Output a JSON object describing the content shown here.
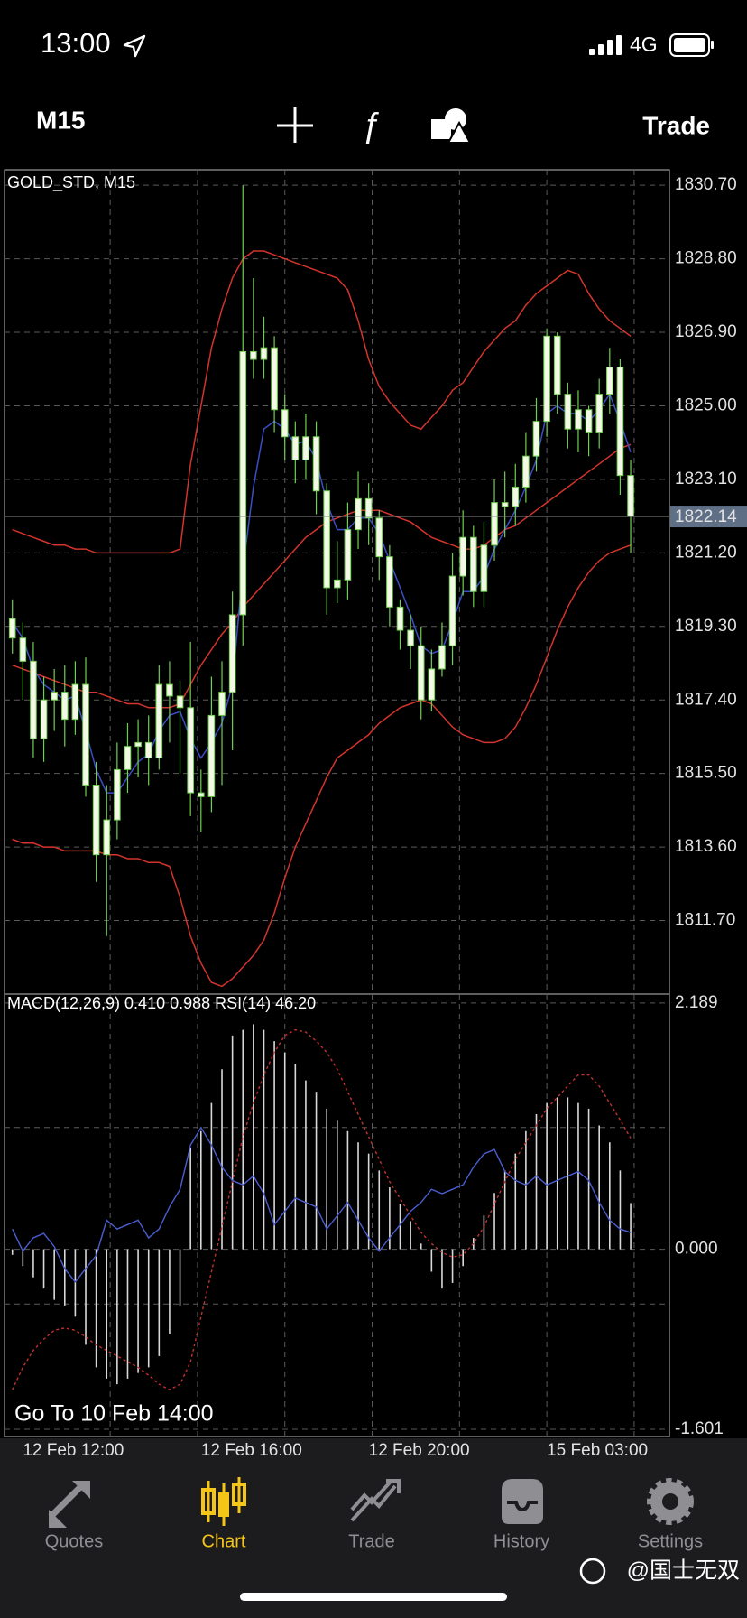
{
  "status_bar": {
    "time": "13:00",
    "network": "4G"
  },
  "toolbar": {
    "timeframe": "M15",
    "action": "Trade"
  },
  "chart_data": [
    {
      "type": "candlestick",
      "title": "GOLD_STD, M15",
      "categories": [
        null,
        "12 Feb 12:00",
        null,
        null,
        null,
        null,
        null,
        null,
        null,
        null,
        null,
        null,
        null,
        null,
        null,
        null,
        null,
        null,
        "12 Feb 16:00",
        null,
        null,
        null,
        null,
        null,
        null,
        null,
        null,
        null,
        null,
        null,
        null,
        null,
        null,
        null,
        "12 Feb 20:00",
        null,
        null,
        null,
        null,
        null,
        null,
        null,
        null,
        null,
        null,
        null,
        null,
        null,
        null,
        null,
        null,
        "15 Feb 03:00",
        null,
        null,
        null,
        null,
        null,
        null,
        null,
        null
      ],
      "open": [
        1819.5,
        1819.0,
        1818.4,
        1816.4,
        1817.4,
        1817.6,
        1816.9,
        1817.8,
        1815.2,
        1813.4,
        1814.3,
        1815.6,
        1816.2,
        1816.3,
        1815.9,
        1817.8,
        1817.5,
        1817.2,
        1815.0,
        1814.9,
        1817.0,
        1817.6,
        1819.6,
        1826.4,
        1826.2,
        1826.5,
        1824.9,
        1824.2,
        1823.6,
        1824.2,
        1822.8,
        1820.3,
        1820.5,
        1821.8,
        1822.6,
        1822.1,
        1821.1,
        1819.8,
        1819.2,
        1818.8,
        1817.4,
        1818.2,
        1818.8,
        1820.6,
        1821.6,
        1820.2,
        1821.4,
        1822.5,
        1822.4,
        1822.9,
        1823.7,
        1824.6,
        1826.8,
        1825.3,
        1824.4,
        1824.9,
        1824.3,
        1825.3,
        1826.0,
        1823.2
      ],
      "high": [
        1820.0,
        1819.4,
        1818.9,
        1818.0,
        1818.2,
        1818.3,
        1818.4,
        1818.5,
        1815.8,
        1815.2,
        1816.3,
        1816.8,
        1816.9,
        1817.0,
        1818.3,
        1818.4,
        1817.9,
        1818.9,
        1815.6,
        1818.0,
        1818.4,
        1820.2,
        1830.7,
        1828.3,
        1827.3,
        1826.8,
        1825.3,
        1824.6,
        1824.8,
        1824.6,
        1823.0,
        1821.5,
        1822.5,
        1823.3,
        1823.0,
        1822.3,
        1821.4,
        1820.0,
        1819.6,
        1819.3,
        1818.7,
        1819.4,
        1821.2,
        1822.3,
        1821.9,
        1822.0,
        1823.1,
        1823.3,
        1823.5,
        1824.3,
        1825.2,
        1827.0,
        1826.9,
        1825.6,
        1825.4,
        1825.0,
        1825.7,
        1826.5,
        1826.2,
        1823.6
      ],
      "low": [
        1818.6,
        1817.4,
        1815.9,
        1815.8,
        1816.6,
        1816.2,
        1816.5,
        1814.9,
        1812.7,
        1811.3,
        1813.8,
        1815.0,
        1815.4,
        1815.2,
        1815.6,
        1816.3,
        1815.5,
        1814.4,
        1814.0,
        1814.5,
        1815.2,
        1816.1,
        1818.8,
        1825.7,
        1825.7,
        1824.3,
        1823.6,
        1823.0,
        1823.1,
        1822.2,
        1819.6,
        1819.9,
        1820.0,
        1821.3,
        1821.4,
        1820.5,
        1819.3,
        1818.7,
        1818.2,
        1816.9,
        1817.1,
        1818.0,
        1818.3,
        1820.1,
        1819.8,
        1819.8,
        1821.0,
        1821.6,
        1821.9,
        1822.5,
        1823.3,
        1824.2,
        1824.8,
        1823.9,
        1823.8,
        1823.7,
        1823.9,
        1824.8,
        1822.7,
        1821.2
      ],
      "close": [
        1819.0,
        1818.4,
        1816.4,
        1817.4,
        1817.6,
        1816.9,
        1817.8,
        1815.2,
        1813.4,
        1814.3,
        1815.6,
        1816.2,
        1816.3,
        1815.9,
        1817.8,
        1817.5,
        1817.2,
        1815.0,
        1814.9,
        1817.0,
        1817.6,
        1819.6,
        1826.4,
        1826.2,
        1826.5,
        1824.9,
        1824.2,
        1823.6,
        1824.2,
        1822.8,
        1820.3,
        1820.5,
        1821.8,
        1822.6,
        1822.1,
        1821.1,
        1819.8,
        1819.2,
        1818.8,
        1817.4,
        1818.2,
        1818.8,
        1820.6,
        1821.6,
        1820.2,
        1821.4,
        1822.5,
        1822.4,
        1822.9,
        1823.7,
        1824.6,
        1826.8,
        1825.3,
        1824.4,
        1824.9,
        1824.3,
        1825.3,
        1826.0,
        1823.2,
        1822.14
      ],
      "candle_color": "#6fd04e",
      "body_fill": "#f3f9e6",
      "series": [
        {
          "color": "#d3342b",
          "values": [
            1821.8,
            1821.7,
            1821.6,
            1821.5,
            1821.4,
            1821.4,
            1821.3,
            1821.3,
            1821.2,
            1821.2,
            1821.2,
            1821.2,
            1821.2,
            1821.2,
            1821.2,
            1821.2,
            1821.3,
            1823.5,
            1825.0,
            1826.5,
            1827.5,
            1828.3,
            1828.8,
            1829.0,
            1829.0,
            1828.9,
            1828.8,
            1828.7,
            1828.6,
            1828.5,
            1828.4,
            1828.3,
            1828.0,
            1827.2,
            1826.2,
            1825.5,
            1825.1,
            1824.8,
            1824.5,
            1824.4,
            1824.7,
            1825.0,
            1825.4,
            1825.6,
            1826.0,
            1826.4,
            1826.7,
            1827.0,
            1827.2,
            1827.6,
            1827.9,
            1828.1,
            1828.3,
            1828.5,
            1828.4,
            1827.9,
            1827.5,
            1827.2,
            1827.0,
            1826.8
          ]
        },
        {
          "color": "#d3342b",
          "values": [
            1818.3,
            1818.2,
            1818.1,
            1818.0,
            1817.9,
            1817.8,
            1817.7,
            1817.6,
            1817.6,
            1817.5,
            1817.4,
            1817.3,
            1817.3,
            1817.2,
            1817.2,
            1817.2,
            1817.3,
            1817.8,
            1818.3,
            1818.7,
            1819.1,
            1819.4,
            1819.8,
            1820.1,
            1820.4,
            1820.7,
            1821.0,
            1821.3,
            1821.6,
            1821.8,
            1822.0,
            1822.1,
            1822.2,
            1822.3,
            1822.3,
            1822.3,
            1822.2,
            1822.1,
            1822.0,
            1821.8,
            1821.6,
            1821.5,
            1821.4,
            1821.3,
            1821.3,
            1821.4,
            1821.6,
            1821.8,
            1821.9,
            1822.1,
            1822.3,
            1822.5,
            1822.7,
            1822.9,
            1823.1,
            1823.3,
            1823.5,
            1823.7,
            1823.9,
            1824.0
          ]
        },
        {
          "color": "#d3342b",
          "values": [
            1813.8,
            1813.7,
            1813.7,
            1813.6,
            1813.6,
            1813.5,
            1813.5,
            1813.5,
            1813.5,
            1813.4,
            1813.4,
            1813.3,
            1813.3,
            1813.2,
            1813.2,
            1813.1,
            1812.3,
            1811.3,
            1810.6,
            1810.1,
            1810.0,
            1810.2,
            1810.5,
            1810.8,
            1811.2,
            1811.9,
            1812.8,
            1813.6,
            1814.2,
            1814.8,
            1815.4,
            1815.9,
            1816.1,
            1816.3,
            1816.5,
            1816.8,
            1817.0,
            1817.2,
            1817.3,
            1817.4,
            1817.3,
            1817.0,
            1816.7,
            1816.5,
            1816.4,
            1816.3,
            1816.3,
            1816.4,
            1816.7,
            1817.2,
            1817.8,
            1818.5,
            1819.2,
            1819.8,
            1820.3,
            1820.7,
            1821.0,
            1821.2,
            1821.3,
            1821.4
          ]
        },
        {
          "color": "#3b4ec6",
          "values": [
            1819.4,
            1819.0,
            1818.2,
            1817.8,
            1817.6,
            1817.4,
            1817.5,
            1816.6,
            1815.6,
            1815.0,
            1815.0,
            1815.4,
            1815.8,
            1816.0,
            1816.6,
            1817.0,
            1817.1,
            1816.4,
            1815.9,
            1816.3,
            1816.8,
            1817.8,
            1820.8,
            1822.9,
            1824.4,
            1824.6,
            1824.4,
            1824.0,
            1824.1,
            1823.6,
            1822.5,
            1821.8,
            1821.8,
            1822.1,
            1822.1,
            1821.7,
            1821.0,
            1820.3,
            1819.6,
            1818.8,
            1818.6,
            1818.7,
            1819.4,
            1820.2,
            1820.2,
            1820.6,
            1821.3,
            1821.8,
            1822.3,
            1822.9,
            1823.6,
            1824.8,
            1825.0,
            1824.8,
            1824.8,
            1824.6,
            1824.9,
            1825.3,
            1824.6,
            1823.8
          ]
        }
      ],
      "ylim": [
        1809.8,
        1831.1
      ],
      "yticks": [
        {
          "value": 1830.7,
          "label": "1830.70"
        },
        {
          "value": 1828.8,
          "label": "1828.80"
        },
        {
          "value": 1826.9,
          "label": "1826.90"
        },
        {
          "value": 1825.0,
          "label": "1825.00"
        },
        {
          "value": 1823.1,
          "label": "1823.10"
        },
        {
          "value": 1821.2,
          "label": "1821.20"
        },
        {
          "value": 1819.3,
          "label": "1819.30"
        },
        {
          "value": 1817.4,
          "label": "1817.40"
        },
        {
          "value": 1815.5,
          "label": "1815.50"
        },
        {
          "value": 1813.6,
          "label": "1813.60"
        },
        {
          "value": 1811.7,
          "label": "1811.70"
        }
      ],
      "last_price": 1822.14,
      "last_price_color": "#5e6f86",
      "grid": true
    },
    {
      "type": "macd",
      "title": "MACD(12,26,9) 0.410 0.988 RSI(14) 46.20",
      "values": [
        -0.05,
        -0.15,
        -0.25,
        -0.35,
        -0.45,
        -0.5,
        -0.6,
        -0.85,
        -1.05,
        -1.15,
        -1.2,
        -1.15,
        -1.1,
        -1.05,
        -0.95,
        -0.75,
        -0.5,
        0.9,
        1.05,
        1.3,
        1.6,
        1.9,
        1.95,
        2.0,
        1.95,
        1.85,
        1.75,
        1.65,
        1.5,
        1.4,
        1.25,
        1.15,
        1.05,
        0.95,
        0.85,
        0.7,
        0.55,
        0.4,
        0.25,
        0.05,
        -0.2,
        -0.35,
        -0.3,
        -0.15,
        0.1,
        0.3,
        0.5,
        0.7,
        0.85,
        1.05,
        1.2,
        1.3,
        1.35,
        1.35,
        1.3,
        1.25,
        1.1,
        0.95,
        0.7,
        0.41
      ],
      "color": "#d9d9d9",
      "series": [
        {
          "color": "#c2322a",
          "dashed": true,
          "values": [
            -1.25,
            -1.05,
            -0.9,
            -0.8,
            -0.72,
            -0.7,
            -0.72,
            -0.78,
            -0.85,
            -0.9,
            -0.95,
            -1.0,
            -1.05,
            -1.12,
            -1.2,
            -1.25,
            -1.2,
            -1.0,
            -0.6,
            -0.2,
            0.2,
            0.6,
            1.0,
            1.3,
            1.55,
            1.75,
            1.9,
            1.95,
            1.93,
            1.85,
            1.75,
            1.6,
            1.4,
            1.2,
            1.0,
            0.8,
            0.6,
            0.45,
            0.3,
            0.15,
            0.05,
            -0.03,
            -0.07,
            -0.05,
            0.05,
            0.2,
            0.4,
            0.6,
            0.8,
            0.95,
            1.1,
            1.25,
            1.35,
            1.45,
            1.55,
            1.55,
            1.45,
            1.3,
            1.15,
            0.988
          ]
        },
        {
          "color": "#4a5ed0",
          "axis": "y2",
          "values": [
            47,
            42,
            45,
            46,
            43,
            38,
            35,
            38,
            41,
            49,
            47,
            48,
            49,
            45,
            47,
            52,
            56,
            66,
            70,
            66,
            61,
            58,
            57,
            59,
            55,
            48,
            51,
            54,
            53,
            52,
            47,
            50,
            53,
            49,
            45,
            42,
            45,
            48,
            51,
            53,
            56,
            55,
            56,
            57,
            61,
            64,
            65,
            60,
            58,
            57,
            59,
            57,
            58,
            59,
            60,
            58,
            53,
            49,
            47,
            46.2
          ]
        }
      ],
      "ylim": [
        -1.665,
        2.26
      ],
      "yticks": [
        2.189,
        {
          "value": 0,
          "label": "0.000"
        },
        -1.601
      ],
      "y2lim": [
        0,
        100
      ],
      "y2levels": [
        30,
        70
      ],
      "grid": true
    }
  ],
  "goto_label": "Go To 10 Feb 14:00",
  "tab_bar": {
    "tabs": [
      "Quotes",
      "Chart",
      "Trade",
      "History",
      "Settings"
    ],
    "active": 1
  },
  "watermark": "@国士无双"
}
